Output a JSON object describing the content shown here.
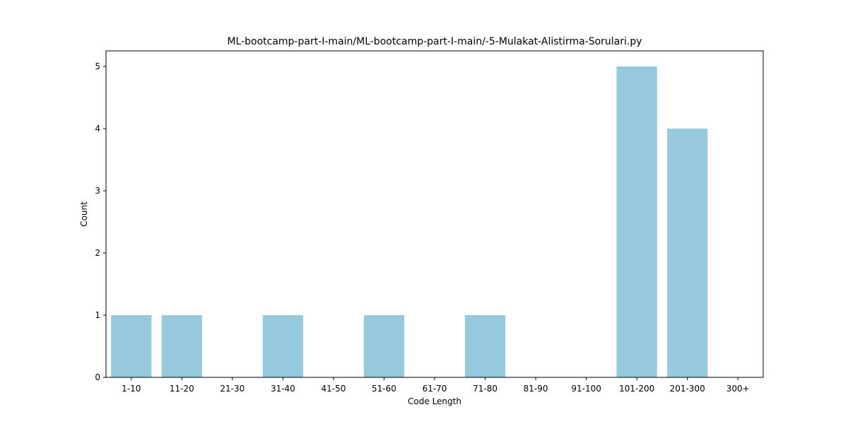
{
  "chart_data": {
    "type": "bar",
    "title": "ML-bootcamp-part-I-main/ML-bootcamp-part-I-main/-5-Mulakat-Alistirma-Sorulari.py",
    "xlabel": "Code Length",
    "ylabel": "Count",
    "categories": [
      "1-10",
      "11-20",
      "21-30",
      "31-40",
      "41-50",
      "51-60",
      "61-70",
      "71-80",
      "81-90",
      "91-100",
      "101-200",
      "201-300",
      "300+"
    ],
    "values": [
      1,
      1,
      0,
      1,
      0,
      1,
      0,
      1,
      0,
      0,
      5,
      4,
      0
    ],
    "ylim": [
      0,
      5.25
    ],
    "yticks": [
      0,
      1,
      2,
      3,
      4,
      5
    ],
    "bar_color": "#96c9de",
    "grid": false,
    "legend": "none"
  }
}
